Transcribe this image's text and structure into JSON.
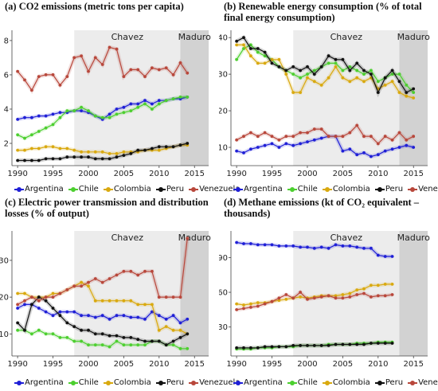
{
  "colors": {
    "Argentina": "#1f1fd6",
    "Chile": "#4ccf2f",
    "Colombia": "#d9a90f",
    "Peru": "#111111",
    "Venezuela": "#b8473b"
  },
  "periods": {
    "chavez": {
      "label": "Chavez",
      "start": 1998,
      "end": 2013
    },
    "maduro": {
      "label": "Maduro",
      "start": 2013,
      "end": 2017
    }
  },
  "chart_data": [
    {
      "id": "a",
      "type": "line",
      "title": "(a) CO2 emissions (metric tons per capita)",
      "xlabel": "",
      "ylabel": "",
      "xlim": [
        1989.2,
        2017
      ],
      "ylim": [
        0.7,
        8.6
      ],
      "xticks": [
        1990,
        1995,
        2000,
        2005,
        2010,
        2015
      ],
      "yticks": [
        2,
        4,
        6,
        8
      ],
      "grid": false,
      "legend": "bottom",
      "x": [
        1990,
        1991,
        1992,
        1993,
        1994,
        1995,
        1996,
        1997,
        1998,
        1999,
        2000,
        2001,
        2002,
        2003,
        2004,
        2005,
        2006,
        2007,
        2008,
        2009,
        2010,
        2011,
        2012,
        2013,
        2014
      ],
      "series": [
        {
          "name": "Argentina",
          "values": [
            3.4,
            3.5,
            3.5,
            3.6,
            3.6,
            3.7,
            3.8,
            3.8,
            3.9,
            3.9,
            3.8,
            3.6,
            3.4,
            3.7,
            4.0,
            4.1,
            4.3,
            4.3,
            4.5,
            4.3,
            4.5,
            4.5,
            4.6,
            4.6,
            4.7
          ]
        },
        {
          "name": "Chile",
          "values": [
            2.5,
            2.3,
            2.5,
            2.7,
            2.9,
            3.1,
            3.5,
            3.9,
            3.9,
            4.1,
            3.9,
            3.6,
            3.5,
            3.5,
            3.7,
            3.8,
            3.9,
            4.1,
            4.3,
            4.0,
            4.3,
            4.5,
            4.6,
            4.7,
            4.7
          ]
        },
        {
          "name": "Colombia",
          "values": [
            1.6,
            1.6,
            1.7,
            1.7,
            1.8,
            1.8,
            1.7,
            1.7,
            1.6,
            1.5,
            1.5,
            1.5,
            1.5,
            1.4,
            1.4,
            1.5,
            1.5,
            1.5,
            1.6,
            1.6,
            1.6,
            1.7,
            1.8,
            1.9,
            1.9
          ]
        },
        {
          "name": "Peru",
          "values": [
            1.0,
            1.0,
            1.0,
            1.0,
            1.1,
            1.1,
            1.1,
            1.2,
            1.2,
            1.2,
            1.2,
            1.1,
            1.1,
            1.1,
            1.2,
            1.3,
            1.4,
            1.6,
            1.6,
            1.7,
            1.8,
            1.8,
            1.8,
            1.9,
            2.0
          ]
        },
        {
          "name": "Venezuela",
          "values": [
            6.2,
            5.7,
            5.1,
            5.9,
            6.0,
            6.0,
            5.4,
            5.9,
            7.0,
            7.1,
            6.2,
            7.0,
            6.6,
            7.6,
            7.5,
            5.9,
            6.3,
            6.3,
            5.9,
            6.4,
            6.3,
            6.4,
            6.0,
            6.7,
            6.1
          ]
        }
      ]
    },
    {
      "id": "b",
      "type": "line",
      "title": "(b) Renewable energy consumption (% of total final energy consumption)",
      "xlabel": "",
      "ylabel": "",
      "xlim": [
        1989.2,
        2017
      ],
      "ylim": [
        5,
        42
      ],
      "xticks": [
        1990,
        1995,
        2000,
        2005,
        2010,
        2015
      ],
      "yticks": [
        10,
        20,
        30,
        40
      ],
      "grid": false,
      "legend": "bottom",
      "x": [
        1990,
        1991,
        1992,
        1993,
        1994,
        1995,
        1996,
        1997,
        1998,
        1999,
        2000,
        2001,
        2002,
        2003,
        2004,
        2005,
        2006,
        2007,
        2008,
        2009,
        2010,
        2011,
        2012,
        2013,
        2014,
        2015
      ],
      "series": [
        {
          "name": "Argentina",
          "values": [
            9,
            8.5,
            9.5,
            10,
            10.5,
            11,
            10,
            11,
            10.5,
            11,
            11.5,
            12,
            12.5,
            13,
            13,
            9,
            9.5,
            8,
            8.5,
            7.5,
            8,
            9,
            9.5,
            10,
            10.5,
            10
          ]
        },
        {
          "name": "Chile",
          "values": [
            34,
            37,
            38,
            36,
            35,
            34,
            32,
            31,
            30,
            29,
            30,
            31,
            32,
            33,
            33,
            31,
            32,
            31,
            30,
            31,
            28,
            29,
            30,
            30,
            27,
            25
          ]
        },
        {
          "name": "Colombia",
          "values": [
            38,
            38,
            35,
            33,
            33,
            34,
            34,
            30,
            25,
            25,
            29,
            28,
            27,
            29,
            32,
            29,
            28,
            29,
            28,
            29,
            26,
            27,
            28,
            25,
            24,
            23.5
          ]
        },
        {
          "name": "Peru",
          "values": [
            39,
            40,
            37,
            37,
            36,
            33,
            32,
            31,
            32,
            31,
            32,
            30,
            32,
            35,
            34,
            34,
            31,
            33,
            31,
            30,
            25,
            29,
            31,
            28,
            25,
            26
          ]
        },
        {
          "name": "Venezuela",
          "values": [
            12,
            13,
            14,
            13,
            14,
            13,
            12,
            13,
            13,
            14,
            14,
            15,
            15,
            13,
            13,
            13,
            14,
            16,
            13,
            13,
            11,
            13,
            12,
            14,
            12,
            13
          ]
        }
      ]
    },
    {
      "id": "c",
      "type": "line",
      "title": "(c) Electric power transmission and distribution losses (% of output)",
      "xlabel": "",
      "ylabel": "",
      "xlim": [
        1989.2,
        2017
      ],
      "ylim": [
        4,
        38
      ],
      "xticks": [
        1990,
        1995,
        2000,
        2005,
        2010,
        2015
      ],
      "yticks": [
        10,
        20,
        30
      ],
      "grid": false,
      "legend": "bottom",
      "x": [
        1990,
        1991,
        1992,
        1993,
        1994,
        1995,
        1996,
        1997,
        1998,
        1999,
        2000,
        2001,
        2002,
        2003,
        2004,
        2005,
        2006,
        2007,
        2008,
        2009,
        2010,
        2011,
        2012,
        2013,
        2014
      ],
      "series": [
        {
          "name": "Argentina",
          "values": [
            17,
            18,
            18,
            17,
            16,
            15,
            16,
            16,
            16,
            15,
            15,
            14.5,
            15,
            14,
            15,
            15,
            14.5,
            14.5,
            14,
            16,
            15,
            14,
            15,
            13,
            14
          ]
        },
        {
          "name": "Chile",
          "values": [
            11,
            11,
            10,
            11,
            10,
            10,
            9,
            9,
            8,
            8,
            7,
            7,
            7,
            6.5,
            8,
            7,
            7,
            7,
            7,
            8,
            8,
            7,
            7,
            6,
            6
          ]
        },
        {
          "name": "Colombia",
          "values": [
            21,
            21,
            20,
            20,
            20,
            21,
            21,
            22,
            23,
            24,
            23,
            19,
            19,
            19,
            19,
            19,
            19,
            18,
            18,
            18,
            11,
            12,
            11,
            11,
            10
          ]
        },
        {
          "name": "Peru",
          "values": [
            13,
            11,
            18,
            20,
            19,
            17,
            15,
            13,
            12,
            11,
            11,
            10,
            10,
            9.5,
            9.5,
            9,
            9,
            8.5,
            8,
            8,
            8,
            7,
            8,
            9,
            10
          ]
        },
        {
          "name": "Venezuela",
          "values": [
            18,
            19,
            20,
            19,
            20,
            20,
            21,
            22,
            23,
            23,
            24,
            25,
            24,
            25,
            26,
            27,
            27,
            26,
            27,
            27,
            20,
            20,
            20,
            20,
            36
          ]
        }
      ]
    },
    {
      "id": "d",
      "type": "line",
      "title": "(d) Methane emissions (kt of CO₂ equivalent – thousands)",
      "xlabel": "",
      "ylabel": "",
      "xlim": [
        1989.2,
        2017
      ],
      "ylim": [
        5,
        113
      ],
      "xticks": [
        1990,
        1995,
        2000,
        2005,
        2010,
        2015
      ],
      "yticks": [
        30,
        60,
        90
      ],
      "grid": false,
      "legend": "bottom",
      "x": [
        1990,
        1991,
        1992,
        1993,
        1994,
        1995,
        1996,
        1997,
        1998,
        1999,
        2000,
        2001,
        2002,
        2003,
        2004,
        2005,
        2006,
        2007,
        2008,
        2009,
        2010,
        2011,
        2012
      ],
      "series": [
        {
          "name": "Argentina",
          "values": [
            103,
            102,
            102,
            101,
            101,
            101,
            100,
            100,
            100,
            99,
            99,
            98,
            99,
            98,
            101,
            100,
            100,
            99,
            98,
            98,
            92,
            91,
            91
          ]
        },
        {
          "name": "Chile",
          "values": [
            11,
            11,
            11,
            12,
            12,
            12,
            13,
            13,
            13,
            14,
            14,
            14,
            14,
            15,
            15,
            15,
            15,
            16,
            16,
            16,
            17,
            17,
            17
          ]
        },
        {
          "name": "Colombia",
          "values": [
            50,
            49,
            50,
            51,
            51,
            52,
            53,
            54,
            55,
            56,
            55,
            56,
            57,
            57,
            57,
            58,
            59,
            62,
            63,
            66,
            66,
            67,
            67
          ]
        },
        {
          "name": "Peru",
          "values": [
            12,
            12,
            12,
            12,
            13,
            13,
            13,
            13,
            14,
            14,
            14,
            14,
            14,
            14,
            15,
            15,
            15,
            15,
            15,
            16,
            16,
            16,
            16
          ]
        },
        {
          "name": "Venezuela",
          "values": [
            45,
            46,
            47,
            48,
            50,
            52,
            55,
            58,
            55,
            60,
            54,
            55,
            56,
            57,
            55,
            55,
            56,
            58,
            59,
            56,
            57,
            57,
            58
          ]
        }
      ]
    }
  ]
}
